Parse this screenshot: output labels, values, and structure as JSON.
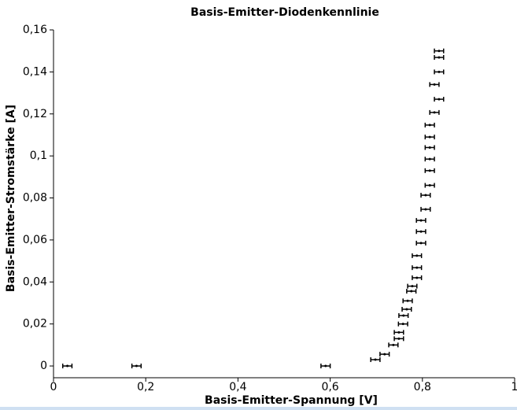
{
  "chart_data": {
    "type": "scatter",
    "title": "Basis-Emitter-Diodenkennlinie",
    "xlabel": "Basis-Emitter-Spannung [V]",
    "ylabel": "Basis-Emitter-Stromstärke [A]",
    "color": "#000000",
    "x": [
      0.03,
      0.18,
      0.59,
      0.698,
      0.718,
      0.737,
      0.749,
      0.749,
      0.758,
      0.759,
      0.766,
      0.768,
      0.776,
      0.778,
      0.788,
      0.788,
      0.788,
      0.797,
      0.797,
      0.797,
      0.807,
      0.807,
      0.816,
      0.816,
      0.816,
      0.816,
      0.816,
      0.816,
      0.826,
      0.836,
      0.826,
      0.836,
      0.836,
      0.836
    ],
    "values": [
      0,
      0,
      0,
      0.003,
      0.0056,
      0.01,
      0.013,
      0.016,
      0.02,
      0.024,
      0.027,
      0.031,
      0.0356,
      0.038,
      0.042,
      0.0468,
      0.0525,
      0.0585,
      0.064,
      0.0693,
      0.0746,
      0.0813,
      0.086,
      0.093,
      0.0985,
      0.104,
      0.109,
      0.1147,
      0.1207,
      0.127,
      0.134,
      0.14,
      0.1469,
      0.15
    ],
    "x_error": [
      0.01,
      0.01,
      0.01,
      0.01,
      0.01,
      0.01,
      0.01,
      0.01,
      0.01,
      0.01,
      0.01,
      0.01,
      0.01,
      0.01,
      0.01,
      0.01,
      0.01,
      0.01,
      0.01,
      0.01,
      0.01,
      0.01,
      0.01,
      0.01,
      0.01,
      0.01,
      0.01,
      0.01,
      0.01,
      0.01,
      0.01,
      0.01,
      0.01,
      0.01
    ],
    "xlim": [
      0,
      1
    ],
    "ylim": [
      -0.0056,
      0.16
    ],
    "xticks": [
      0,
      {
        "value": 0.2,
        "label": "0,2"
      },
      {
        "value": 0.4,
        "label": "0,4"
      },
      {
        "value": 0.6,
        "label": "0,6"
      },
      {
        "value": 0.8,
        "label": "0,8"
      },
      1
    ],
    "yticks": [
      0,
      {
        "value": 0.02,
        "label": "0,02"
      },
      {
        "value": 0.04,
        "label": "0,04"
      },
      {
        "value": 0.06,
        "label": "0,06"
      },
      {
        "value": 0.08,
        "label": "0,08"
      },
      {
        "value": 0.1,
        "label": "0,1"
      },
      {
        "value": 0.12,
        "label": "0,12"
      },
      {
        "value": 0.14,
        "label": "0,14"
      },
      {
        "value": 0.16,
        "label": "0,16"
      }
    ]
  }
}
